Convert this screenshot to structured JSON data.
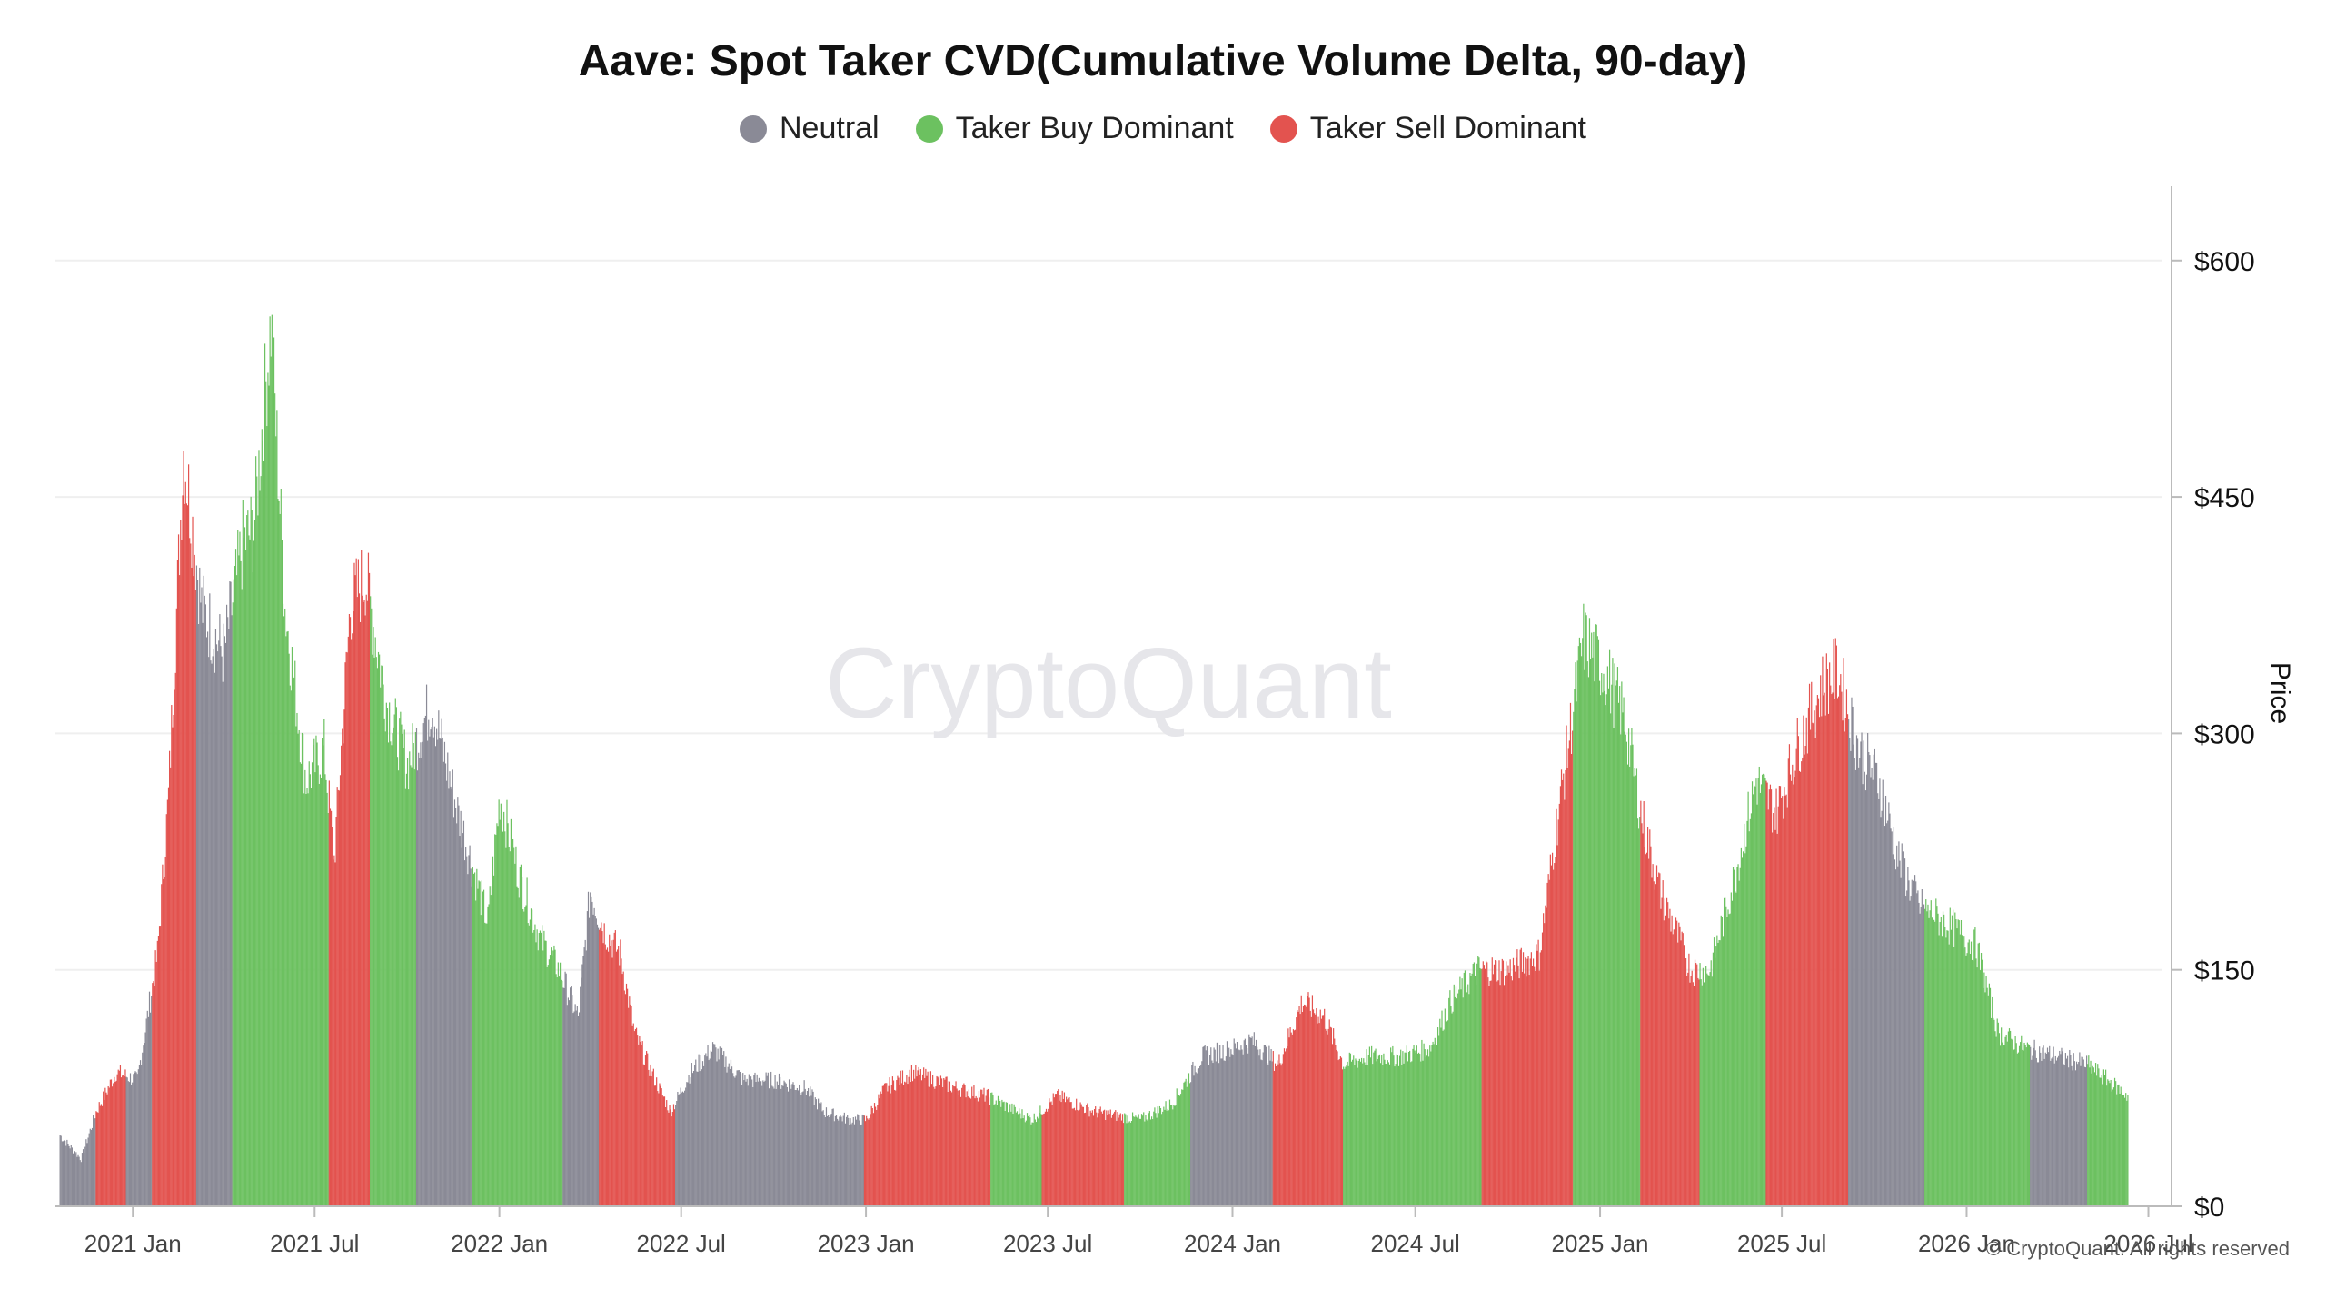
{
  "title": "Aave: Spot Taker CVD(Cumulative Volume Delta, 90-day)",
  "watermark": "CryptoQuant",
  "copyright": "© CryptoQuant. All rights reserved",
  "legend": [
    {
      "label": "Neutral",
      "color": "#8a8a96"
    },
    {
      "label": "Taker Buy Dominant",
      "color": "#6cc160"
    },
    {
      "label": "Taker Sell Dominant",
      "color": "#e3534f"
    }
  ],
  "chart_data": {
    "type": "bar",
    "title": "Aave: Spot Taker CVD(Cumulative Volume Delta, 90-day)",
    "ylabel": "Price",
    "ylim": [
      0,
      650
    ],
    "yticks": [
      0,
      150,
      300,
      450,
      600
    ],
    "ytick_labels": [
      "$0",
      "$150",
      "$300",
      "$450",
      "$600"
    ],
    "xlim": [
      "2020-10-15",
      "2026-07-15"
    ],
    "xtick_labels": [
      "2021 Jan",
      "2021 Jul",
      "2022 Jan",
      "2022 Jul",
      "2023 Jan",
      "2023 Jul",
      "2024 Jan",
      "2024 Jul",
      "2025 Jan",
      "2025 Jul",
      "2026 Jan",
      "2026 Jul"
    ],
    "xtick_dates": [
      "2021-01-01",
      "2021-07-01",
      "2022-01-01",
      "2022-07-01",
      "2023-01-01",
      "2023-07-01",
      "2024-01-01",
      "2024-07-01",
      "2025-01-01",
      "2025-07-01",
      "2026-01-01",
      "2026-07-01"
    ],
    "grid": true,
    "legend_position": "top-center",
    "price_points": [
      [
        "2020-10-20",
        45
      ],
      [
        "2020-11-10",
        30
      ],
      [
        "2020-11-25",
        60
      ],
      [
        "2020-12-15",
        85
      ],
      [
        "2021-01-05",
        80
      ],
      [
        "2021-01-25",
        160
      ],
      [
        "2021-02-05",
        260
      ],
      [
        "2021-02-20",
        480
      ],
      [
        "2021-03-10",
        380
      ],
      [
        "2021-04-01",
        350
      ],
      [
        "2021-04-20",
        420
      ],
      [
        "2021-05-01",
        430
      ],
      [
        "2021-05-18",
        560
      ],
      [
        "2021-06-01",
        380
      ],
      [
        "2021-06-22",
        270
      ],
      [
        "2021-07-10",
        290
      ],
      [
        "2021-07-20",
        220
      ],
      [
        "2021-08-05",
        380
      ],
      [
        "2021-08-20",
        400
      ],
      [
        "2021-09-10",
        320
      ],
      [
        "2021-10-01",
        280
      ],
      [
        "2021-10-25",
        320
      ],
      [
        "2021-11-20",
        250
      ],
      [
        "2021-12-20",
        180
      ],
      [
        "2022-01-01",
        260
      ],
      [
        "2022-01-20",
        210
      ],
      [
        "2022-02-10",
        170
      ],
      [
        "2022-03-01",
        150
      ],
      [
        "2022-03-20",
        120
      ],
      [
        "2022-04-01",
        200
      ],
      [
        "2022-04-15",
        175
      ],
      [
        "2022-05-01",
        160
      ],
      [
        "2022-05-15",
        110
      ],
      [
        "2022-06-01",
        85
      ],
      [
        "2022-06-20",
        60
      ],
      [
        "2022-07-10",
        85
      ],
      [
        "2022-08-01",
        100
      ],
      [
        "2022-09-01",
        80
      ],
      [
        "2022-10-01",
        80
      ],
      [
        "2022-11-01",
        75
      ],
      [
        "2022-11-20",
        60
      ],
      [
        "2022-12-15",
        55
      ],
      [
        "2023-01-01",
        55
      ],
      [
        "2023-01-20",
        75
      ],
      [
        "2023-02-15",
        85
      ],
      [
        "2023-04-01",
        75
      ],
      [
        "2023-05-01",
        70
      ],
      [
        "2023-06-15",
        55
      ],
      [
        "2023-07-10",
        70
      ],
      [
        "2023-08-15",
        60
      ],
      [
        "2023-10-01",
        55
      ],
      [
        "2023-11-01",
        65
      ],
      [
        "2023-12-01",
        95
      ],
      [
        "2024-01-01",
        100
      ],
      [
        "2024-01-20",
        105
      ],
      [
        "2024-02-15",
        90
      ],
      [
        "2024-03-10",
        130
      ],
      [
        "2024-04-01",
        120
      ],
      [
        "2024-04-20",
        90
      ],
      [
        "2024-05-15",
        95
      ],
      [
        "2024-06-15",
        95
      ],
      [
        "2024-07-15",
        100
      ],
      [
        "2024-08-05",
        130
      ],
      [
        "2024-09-01",
        150
      ],
      [
        "2024-10-01",
        150
      ],
      [
        "2024-11-01",
        160
      ],
      [
        "2024-11-20",
        250
      ],
      [
        "2024-12-15",
        360
      ],
      [
        "2025-01-05",
        340
      ],
      [
        "2025-01-25",
        310
      ],
      [
        "2025-02-10",
        250
      ],
      [
        "2025-03-01",
        200
      ],
      [
        "2025-04-01",
        150
      ],
      [
        "2025-04-20",
        150
      ],
      [
        "2025-05-15",
        210
      ],
      [
        "2025-06-05",
        270
      ],
      [
        "2025-06-25",
        250
      ],
      [
        "2025-07-15",
        290
      ],
      [
        "2025-08-10",
        330
      ],
      [
        "2025-08-25",
        340
      ],
      [
        "2025-09-15",
        290
      ],
      [
        "2025-10-05",
        270
      ],
      [
        "2025-10-25",
        220
      ],
      [
        "2025-11-15",
        190
      ],
      [
        "2025-12-10",
        180
      ],
      [
        "2026-01-10",
        165
      ],
      [
        "2026-02-01",
        110
      ],
      [
        "2026-03-01",
        100
      ],
      [
        "2026-04-01",
        95
      ],
      [
        "2026-05-01",
        90
      ],
      [
        "2026-06-10",
        70
      ]
    ],
    "regimes": [
      {
        "start": "2020-10-20",
        "end": "2020-11-25",
        "state": "Neutral"
      },
      {
        "start": "2020-11-25",
        "end": "2020-12-25",
        "state": "Taker Sell Dominant"
      },
      {
        "start": "2020-12-25",
        "end": "2021-01-20",
        "state": "Neutral"
      },
      {
        "start": "2021-01-20",
        "end": "2021-03-05",
        "state": "Taker Sell Dominant"
      },
      {
        "start": "2021-03-05",
        "end": "2021-04-10",
        "state": "Neutral"
      },
      {
        "start": "2021-04-10",
        "end": "2021-06-01",
        "state": "Taker Buy Dominant"
      },
      {
        "start": "2021-06-01",
        "end": "2021-07-15",
        "state": "Taker Buy Dominant"
      },
      {
        "start": "2021-07-15",
        "end": "2021-08-25",
        "state": "Taker Sell Dominant"
      },
      {
        "start": "2021-08-25",
        "end": "2021-10-10",
        "state": "Taker Buy Dominant"
      },
      {
        "start": "2021-10-10",
        "end": "2021-12-05",
        "state": "Neutral"
      },
      {
        "start": "2021-12-05",
        "end": "2022-03-05",
        "state": "Taker Buy Dominant"
      },
      {
        "start": "2022-03-05",
        "end": "2022-04-10",
        "state": "Neutral"
      },
      {
        "start": "2022-04-10",
        "end": "2022-06-25",
        "state": "Taker Sell Dominant"
      },
      {
        "start": "2022-06-25",
        "end": "2022-12-30",
        "state": "Neutral"
      },
      {
        "start": "2022-12-30",
        "end": "2023-05-05",
        "state": "Taker Sell Dominant"
      },
      {
        "start": "2023-05-05",
        "end": "2023-06-25",
        "state": "Taker Buy Dominant"
      },
      {
        "start": "2023-06-25",
        "end": "2023-09-15",
        "state": "Taker Sell Dominant"
      },
      {
        "start": "2023-09-15",
        "end": "2023-11-20",
        "state": "Taker Buy Dominant"
      },
      {
        "start": "2023-11-20",
        "end": "2024-02-10",
        "state": "Neutral"
      },
      {
        "start": "2024-02-10",
        "end": "2024-04-20",
        "state": "Taker Sell Dominant"
      },
      {
        "start": "2024-04-20",
        "end": "2024-07-20",
        "state": "Taker Buy Dominant"
      },
      {
        "start": "2024-07-20",
        "end": "2024-09-05",
        "state": "Taker Buy Dominant"
      },
      {
        "start": "2024-09-05",
        "end": "2024-12-05",
        "state": "Taker Sell Dominant"
      },
      {
        "start": "2024-12-05",
        "end": "2025-02-10",
        "state": "Taker Buy Dominant"
      },
      {
        "start": "2025-02-10",
        "end": "2025-04-10",
        "state": "Taker Sell Dominant"
      },
      {
        "start": "2025-04-10",
        "end": "2025-06-15",
        "state": "Taker Buy Dominant"
      },
      {
        "start": "2025-06-15",
        "end": "2025-09-05",
        "state": "Taker Sell Dominant"
      },
      {
        "start": "2025-09-05",
        "end": "2025-11-20",
        "state": "Neutral"
      },
      {
        "start": "2025-11-20",
        "end": "2026-03-05",
        "state": "Taker Buy Dominant"
      },
      {
        "start": "2026-03-05",
        "end": "2026-05-01",
        "state": "Neutral"
      },
      {
        "start": "2026-05-01",
        "end": "2026-06-12",
        "state": "Taker Buy Dominant"
      }
    ]
  }
}
